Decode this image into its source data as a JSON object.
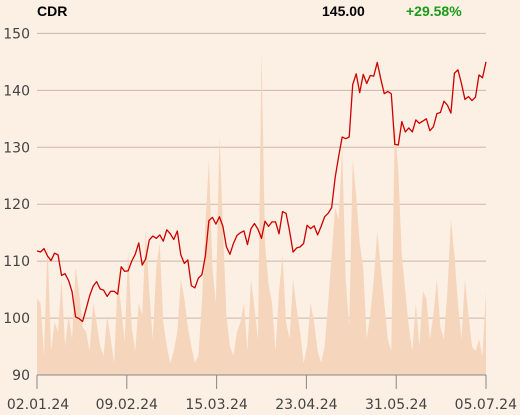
{
  "header": {
    "ticker": "CDR",
    "last_price": "145.00",
    "change_pct": "+29.58%"
  },
  "colors": {
    "background": "#fcefe3",
    "price_line": "#cc0000",
    "volume_area": "#f6d5bd",
    "grid": "#c8b8a8",
    "change_positive": "#1a9a1a"
  },
  "chart_data": {
    "type": "line",
    "title": "",
    "xlabel": "",
    "ylabel": "",
    "ylim": [
      90,
      152
    ],
    "y_ticks": [
      90,
      100,
      110,
      120,
      130,
      140,
      150
    ],
    "x_ticks": [
      "02.01.24",
      "09.02.24",
      "15.03.24",
      "23.04.24",
      "31.05.24",
      "05.07.24"
    ],
    "grid": true,
    "series": [
      {
        "kind": "price",
        "values": [
          111.8,
          111.6,
          112.2,
          110.9,
          110.1,
          111.4,
          111.1,
          107.5,
          107.8,
          106.6,
          104.6,
          100.2,
          99.9,
          99.4,
          101.6,
          103.9,
          105.6,
          106.4,
          105.1,
          104.9,
          103.8,
          104.7,
          104.7,
          104.2,
          109.0,
          108.2,
          108.3,
          110.0,
          111.2,
          113.2,
          109.3,
          110.4,
          113.7,
          114.4,
          114.0,
          114.6,
          113.5,
          115.5,
          114.8,
          113.8,
          115.3,
          111.1,
          109.6,
          110.2,
          105.7,
          105.3,
          107.0,
          107.6,
          110.9,
          117.1,
          117.7,
          116.5,
          117.8,
          116.1,
          112.5,
          111.2,
          113.1,
          114.5,
          115.0,
          115.3,
          112.9,
          115.7,
          116.6,
          115.6,
          114.0,
          117.0,
          116.1,
          116.9,
          116.9,
          114.8,
          118.7,
          118.4,
          115.3,
          111.6,
          112.3,
          112.5,
          113.1,
          116.3,
          115.7,
          116.2,
          114.6,
          116.1,
          117.8,
          118.4,
          119.4,
          124.7,
          128.4,
          131.8,
          131.5,
          131.8,
          141.0,
          142.9,
          139.6,
          142.8,
          141.2,
          142.6,
          142.5,
          144.9,
          142.0,
          139.4,
          139.8,
          139.4,
          130.5,
          130.4,
          134.5,
          132.7,
          133.4,
          132.7,
          134.8,
          134.2,
          134.6,
          135.0,
          132.9,
          133.6,
          135.9,
          136.1,
          138.1,
          137.4,
          136.0,
          143.0,
          143.6,
          141.2,
          138.4,
          138.9,
          138.2,
          138.8,
          142.7,
          142.2,
          145.0
        ]
      },
      {
        "kind": "volume",
        "values": [
          0.32,
          0.3,
          0.08,
          0.55,
          0.1,
          0.22,
          0.18,
          0.4,
          0.12,
          0.25,
          0.15,
          0.45,
          0.35,
          0.2,
          0.18,
          0.1,
          0.3,
          0.22,
          0.12,
          0.08,
          0.25,
          0.15,
          0.05,
          0.4,
          0.28,
          0.14,
          0.52,
          0.2,
          0.1,
          0.3,
          0.25,
          0.6,
          0.35,
          0.15,
          0.45,
          0.55,
          0.22,
          0.12,
          0.05,
          0.1,
          0.18,
          0.4,
          0.32,
          0.2,
          0.12,
          0.05,
          0.08,
          0.3,
          0.62,
          0.9,
          0.45,
          0.3,
          1.0,
          0.62,
          0.25,
          0.12,
          0.08,
          0.18,
          0.22,
          0.3,
          0.1,
          0.4,
          0.28,
          0.15,
          1.35,
          0.55,
          0.38,
          0.3,
          0.1,
          0.35,
          0.5,
          0.22,
          0.15,
          0.4,
          0.28,
          0.18,
          0.05,
          0.12,
          0.3,
          0.22,
          0.1,
          0.05,
          0.12,
          0.3,
          0.5,
          0.7,
          0.65,
          0.95,
          0.4,
          0.2,
          0.9,
          0.75,
          0.55,
          0.45,
          0.15,
          0.25,
          0.4,
          0.6,
          0.45,
          0.3,
          0.15,
          0.1,
          1.05,
          0.85,
          0.5,
          0.35,
          0.2,
          0.1,
          0.3,
          0.12,
          0.35,
          0.32,
          0.15,
          0.25,
          0.4,
          0.2,
          0.15,
          0.35,
          0.65,
          0.5,
          0.3,
          0.15,
          0.4,
          0.25,
          0.12,
          0.1,
          0.15,
          0.08,
          0.35
        ]
      }
    ]
  }
}
